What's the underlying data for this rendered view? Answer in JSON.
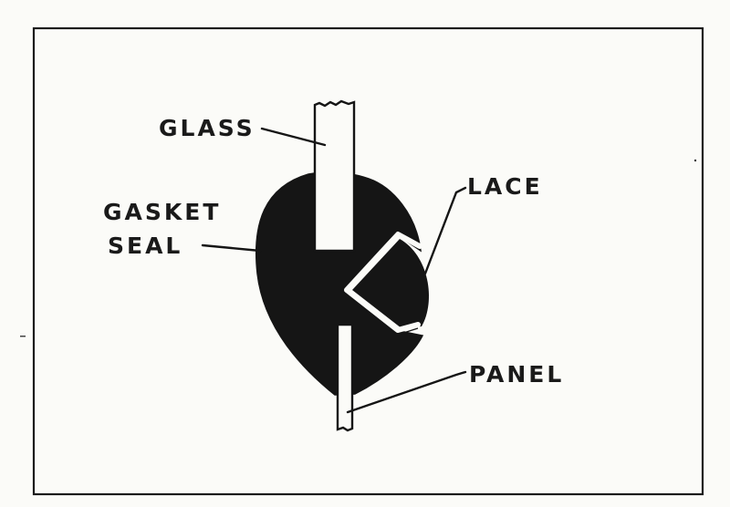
{
  "labels": {
    "glass": "GLASS",
    "gasket_line1": "GASKET",
    "gasket_line2": "SEAL",
    "lace": "LACE",
    "panel": "PANEL"
  },
  "colors": {
    "ink": "#151515",
    "paper": "#fbfbf8"
  }
}
